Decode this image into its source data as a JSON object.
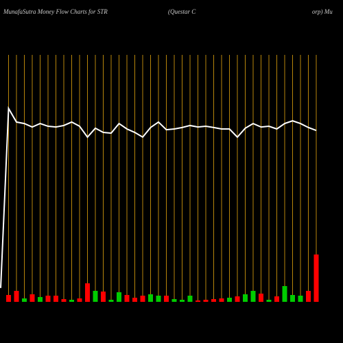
{
  "chart_data": {
    "type": "money-flow",
    "title": "MunafaSutra  Money Flow  Charts for STR",
    "subtitle_parts": [
      "(Questar C",
      "orp) Mu"
    ],
    "categories": [
      null,
      null,
      null,
      null,
      null,
      null,
      null,
      null,
      null,
      null,
      null,
      null,
      null,
      null,
      null,
      null,
      null,
      null,
      null,
      null,
      null,
      null,
      null,
      null,
      null,
      null,
      null,
      null,
      null,
      null,
      null,
      null,
      null,
      null,
      null,
      null,
      null,
      null,
      null,
      null,
      null
    ],
    "ylim": [
      0,
      100
    ],
    "y2lim": [
      0,
      360
    ],
    "grid_color": "#b8860b",
    "series": [
      {
        "type": "line",
        "color": "#ffffff",
        "values": [
          5.6,
          78.3,
          72.8,
          72.2,
          70.8,
          72.2,
          71.1,
          70.8,
          71.4,
          72.8,
          71.1,
          66.7,
          70.3,
          68.6,
          68.3,
          72.2,
          70,
          68.6,
          66.7,
          70.6,
          72.8,
          69.7,
          70,
          70.6,
          71.4,
          70.8,
          71.1,
          70.6,
          70,
          70,
          66.7,
          70.3,
          72.2,
          70.8,
          71.1,
          70,
          72.2,
          73.3,
          72.2,
          70.6,
          69.4
        ]
      },
      {
        "type": "bar",
        "axis": "y2",
        "values": [
          null,
          10,
          16,
          5,
          11,
          7,
          9,
          9,
          4,
          3,
          5,
          27,
          16,
          15,
          3,
          14,
          10,
          6,
          9,
          11,
          9,
          9,
          4,
          3,
          9,
          2,
          3,
          4,
          5,
          6,
          8,
          11,
          16,
          12,
          3,
          8,
          23,
          10,
          9,
          16,
          69
        ],
        "colors": [
          null,
          "#ff0000",
          "#ff0000",
          "#00cc00",
          "#ff0000",
          "#00cc00",
          "#ff0000",
          "#ff0000",
          "#ff0000",
          "#00cc00",
          "#ff0000",
          "#ff0000",
          "#00cc00",
          "#ff0000",
          "#00cc00",
          "#00cc00",
          "#ff0000",
          "#ff0000",
          "#ff0000",
          "#00cc00",
          "#00cc00",
          "#ff0000",
          "#00cc00",
          "#00cc00",
          "#00cc00",
          "#ff0000",
          "#ff0000",
          "#ff0000",
          "#ff0000",
          "#00cc00",
          "#ff0000",
          "#00cc00",
          "#00cc00",
          "#ff0000",
          "#00cc00",
          "#ff0000",
          "#00cc00",
          "#00cc00",
          "#00cc00",
          "#ff0000",
          "#ff0000"
        ]
      }
    ]
  }
}
